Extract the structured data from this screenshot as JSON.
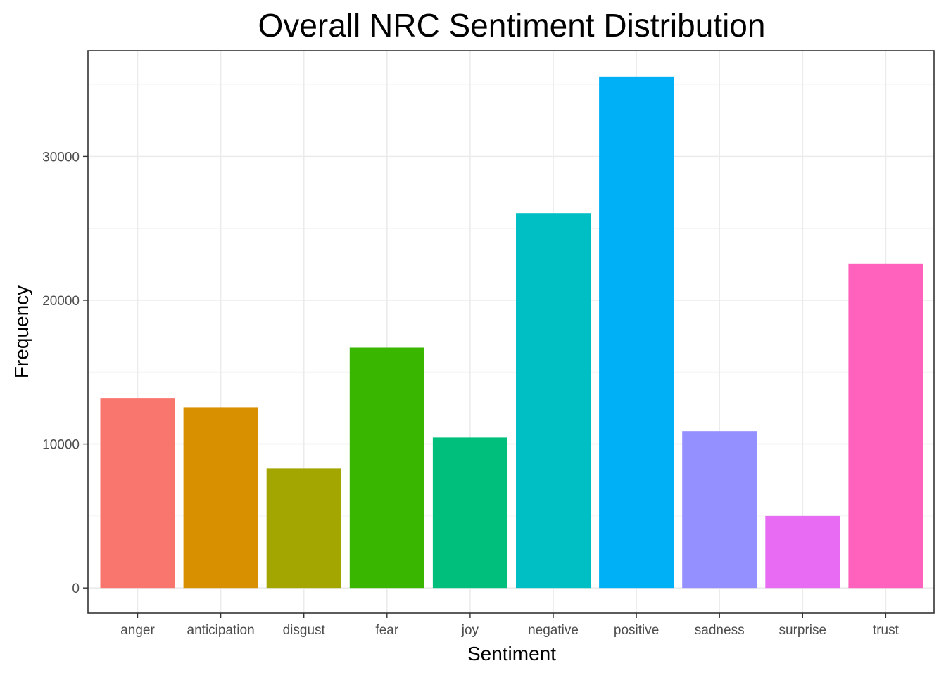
{
  "chart_data": {
    "type": "bar",
    "title": "Overall NRC Sentiment Distribution",
    "xlabel": "Sentiment",
    "ylabel": "Frequency",
    "categories": [
      "anger",
      "anticipation",
      "disgust",
      "fear",
      "joy",
      "negative",
      "positive",
      "sadness",
      "surprise",
      "trust"
    ],
    "values": [
      13200,
      12550,
      8300,
      16700,
      10450,
      26050,
      35550,
      10900,
      5000,
      22550
    ],
    "colors": [
      "#F8766D",
      "#D89000",
      "#A3A500",
      "#39B600",
      "#00BF7D",
      "#00BFC4",
      "#00B0F6",
      "#9590FF",
      "#E76BF3",
      "#FF62BC"
    ],
    "ylim": [
      -1750,
      37350
    ],
    "yticks": [
      0,
      10000,
      20000,
      30000
    ],
    "grid": true,
    "legend": "none"
  }
}
